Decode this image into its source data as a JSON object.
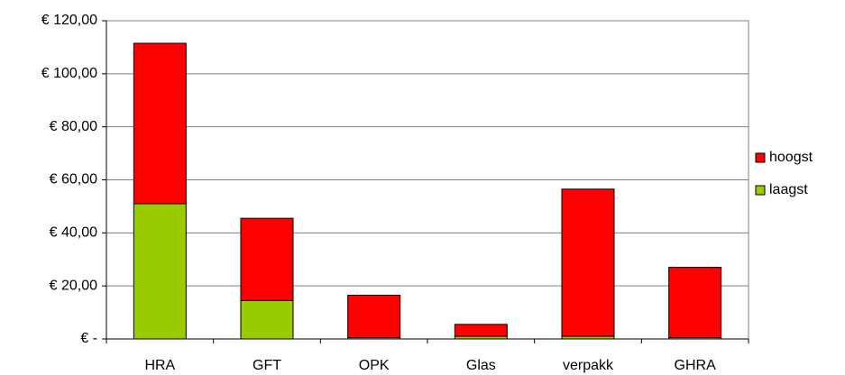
{
  "chart_data": {
    "type": "stacked_bar",
    "categories": [
      "HRA",
      "GFT",
      "OPK",
      "Glas",
      "verpakk",
      "GHRA"
    ],
    "series": [
      {
        "name": "laagst",
        "color": "#99cc00",
        "values": [
          51,
          14.5,
          0.5,
          1,
          1,
          0.5
        ]
      },
      {
        "name": "hoogst",
        "color": "#ff0000",
        "values": [
          60.5,
          31,
          16,
          4.5,
          55.5,
          26.5
        ]
      }
    ],
    "ylim": [
      0,
      120
    ],
    "yticks": [
      {
        "value": 0,
        "label": "€ -"
      },
      {
        "value": 20,
        "label": "€ 20,00"
      },
      {
        "value": 40,
        "label": "€ 40,00"
      },
      {
        "value": 60,
        "label": "€ 60,00"
      },
      {
        "value": 80,
        "label": "€ 80,00"
      },
      {
        "value": 100,
        "label": "€ 100,00"
      },
      {
        "value": 120,
        "label": "€ 120,00"
      }
    ],
    "grid": true,
    "legend": "right"
  }
}
